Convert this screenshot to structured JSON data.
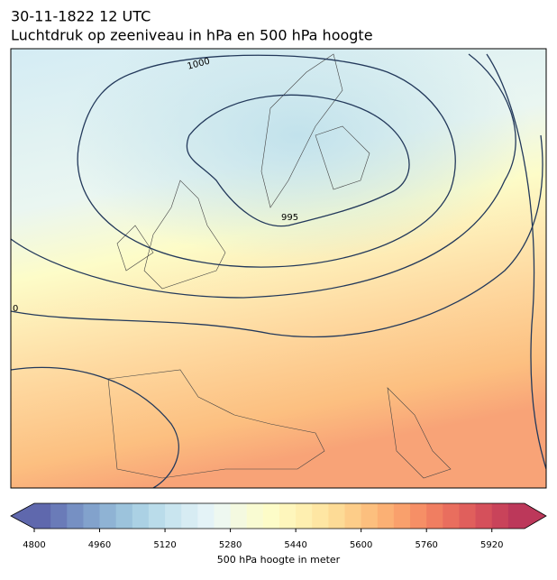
{
  "header": {
    "title": "30-11-1822 12 UTC",
    "subtitle": "Luchtdruk op zeeniveau in hPa en 500 hPa hoogte"
  },
  "map": {
    "contour_labels": [
      "1000",
      "995",
      "0"
    ]
  },
  "colorbar": {
    "label": "500 hPa hoogte in meter",
    "lim": [
      4800,
      6000
    ],
    "ticks": [
      4800,
      4960,
      5120,
      5280,
      5440,
      5600,
      5760,
      5920
    ],
    "colors": [
      "#5f68ad",
      "#6a7bb8",
      "#7690c3",
      "#82a2cc",
      "#8fb3d4",
      "#9cc3dc",
      "#abd1e4",
      "#badcea",
      "#c9e5ef",
      "#d7ecf3",
      "#e4f3f7",
      "#eef8f0",
      "#f4f9e0",
      "#f9fbd2",
      "#fdfcc8",
      "#fef6bc",
      "#feefb0",
      "#fee6a3",
      "#fddb96",
      "#fdcd89",
      "#fcbf7e",
      "#fbb074",
      "#f9a06c",
      "#f68f66",
      "#f07e61",
      "#e96e5e",
      "#e05f5c",
      "#d5505b",
      "#c9435a",
      "#bc385a"
    ]
  }
}
